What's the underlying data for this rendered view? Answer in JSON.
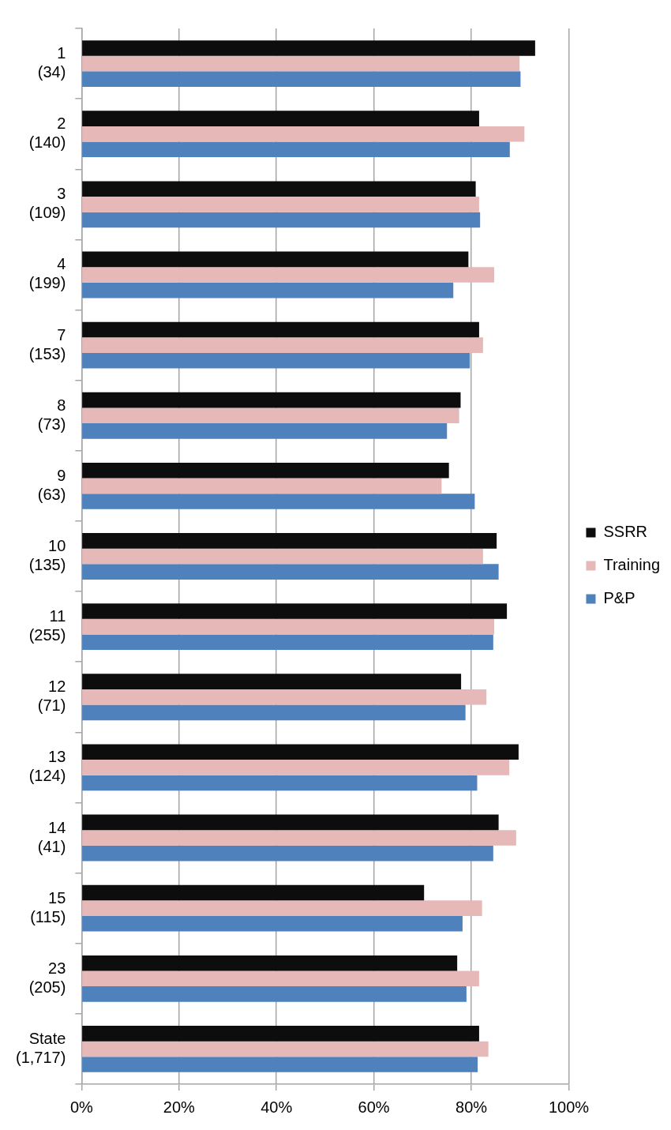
{
  "chart_data": {
    "type": "bar",
    "orientation": "horizontal",
    "categories": [
      "1\n(34)",
      "2\n(140)",
      "3\n(109)",
      "4\n(199)",
      "7\n(153)",
      "8\n(73)",
      "9\n(63)",
      "10\n(135)",
      "11\n(255)",
      "12\n(71)",
      "13\n(124)",
      "14\n(41)",
      "15\n(115)",
      "23\n(205)",
      "State\n(1,717)"
    ],
    "series": [
      {
        "name": "SSRR",
        "color": "#0d0d0d",
        "values": [
          93.1,
          81.6,
          80.9,
          79.4,
          81.6,
          77.8,
          75.4,
          85.2,
          87.3,
          77.9,
          89.7,
          85.6,
          70.3,
          77.1,
          81.6
        ]
      },
      {
        "name": "Training",
        "color": "#e6b8b7",
        "values": [
          89.9,
          90.9,
          81.6,
          84.7,
          82.4,
          77.5,
          73.9,
          82.4,
          84.7,
          83.1,
          87.8,
          89.2,
          82.2,
          81.6,
          83.5
        ]
      },
      {
        "name": "P&P",
        "color": "#4f81bd",
        "values": [
          90.1,
          87.9,
          81.8,
          76.3,
          79.7,
          75.0,
          80.7,
          85.6,
          84.5,
          78.8,
          81.2,
          84.5,
          78.2,
          79.0,
          81.3
        ]
      }
    ],
    "xlim": [
      0,
      100
    ],
    "xticks": [
      {
        "value": 0,
        "label": "0%"
      },
      {
        "value": 20,
        "label": "20%"
      },
      {
        "value": 40,
        "label": "40%"
      },
      {
        "value": 60,
        "label": "60%"
      },
      {
        "value": 80,
        "label": "80%"
      },
      {
        "value": 100,
        "label": "100%"
      }
    ],
    "grid": "x",
    "legend": "right"
  }
}
